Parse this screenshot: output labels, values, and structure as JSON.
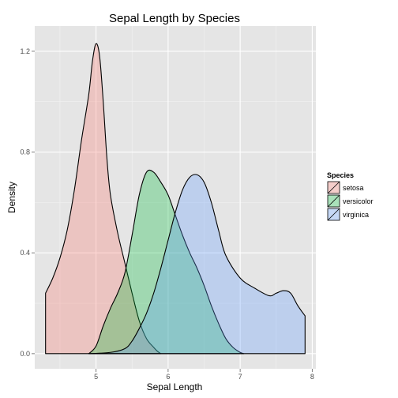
{
  "chart_data": {
    "type": "area",
    "title": "Sepal Length by Species",
    "xlabel": "Sepal Length",
    "ylabel": "Density",
    "xlim": [
      4.15,
      8.05
    ],
    "ylim": [
      -0.06,
      1.3
    ],
    "x_ticks": [
      5,
      6,
      7,
      8
    ],
    "x_tick_labels": [
      "5",
      "6",
      "7",
      "8"
    ],
    "y_ticks": [
      0.0,
      0.4,
      0.8,
      1.2
    ],
    "y_tick_labels": [
      "0.0",
      "0.4",
      "0.8",
      "1.2"
    ],
    "grid": true,
    "legend": {
      "title": "Species",
      "position": "right"
    },
    "series": [
      {
        "name": "setosa",
        "fill": "#F8766D",
        "x": [
          4.3,
          4.4,
          4.5,
          4.6,
          4.7,
          4.8,
          4.9,
          4.95,
          5.0,
          5.05,
          5.1,
          5.15,
          5.2,
          5.3,
          5.4,
          5.5,
          5.6,
          5.7,
          5.8,
          5.85,
          5.9
        ],
        "y": [
          0.24,
          0.3,
          0.38,
          0.49,
          0.65,
          0.85,
          1.03,
          1.16,
          1.23,
          1.18,
          1.0,
          0.78,
          0.63,
          0.48,
          0.36,
          0.24,
          0.13,
          0.06,
          0.025,
          0.01,
          0.0
        ]
      },
      {
        "name": "versicolor",
        "fill": "#00BA38",
        "x": [
          4.9,
          5.0,
          5.1,
          5.2,
          5.3,
          5.4,
          5.5,
          5.6,
          5.7,
          5.8,
          5.9,
          6.0,
          6.1,
          6.2,
          6.3,
          6.4,
          6.5,
          6.6,
          6.7,
          6.8,
          6.9,
          7.0,
          7.05
        ],
        "y": [
          0.0,
          0.03,
          0.11,
          0.18,
          0.24,
          0.32,
          0.47,
          0.63,
          0.72,
          0.72,
          0.68,
          0.63,
          0.55,
          0.47,
          0.4,
          0.34,
          0.27,
          0.19,
          0.12,
          0.06,
          0.025,
          0.005,
          0.0
        ]
      },
      {
        "name": "virginica",
        "fill": "#619CFF",
        "x": [
          4.9,
          5.2,
          5.4,
          5.5,
          5.6,
          5.7,
          5.8,
          5.9,
          6.0,
          6.1,
          6.2,
          6.3,
          6.4,
          6.5,
          6.6,
          6.7,
          6.8,
          7.0,
          7.2,
          7.4,
          7.5,
          7.6,
          7.7,
          7.8,
          7.9
        ],
        "y": [
          0.0,
          0.005,
          0.02,
          0.05,
          0.1,
          0.16,
          0.24,
          0.34,
          0.45,
          0.56,
          0.65,
          0.7,
          0.71,
          0.68,
          0.6,
          0.49,
          0.39,
          0.3,
          0.26,
          0.23,
          0.24,
          0.25,
          0.24,
          0.19,
          0.15
        ]
      }
    ]
  }
}
